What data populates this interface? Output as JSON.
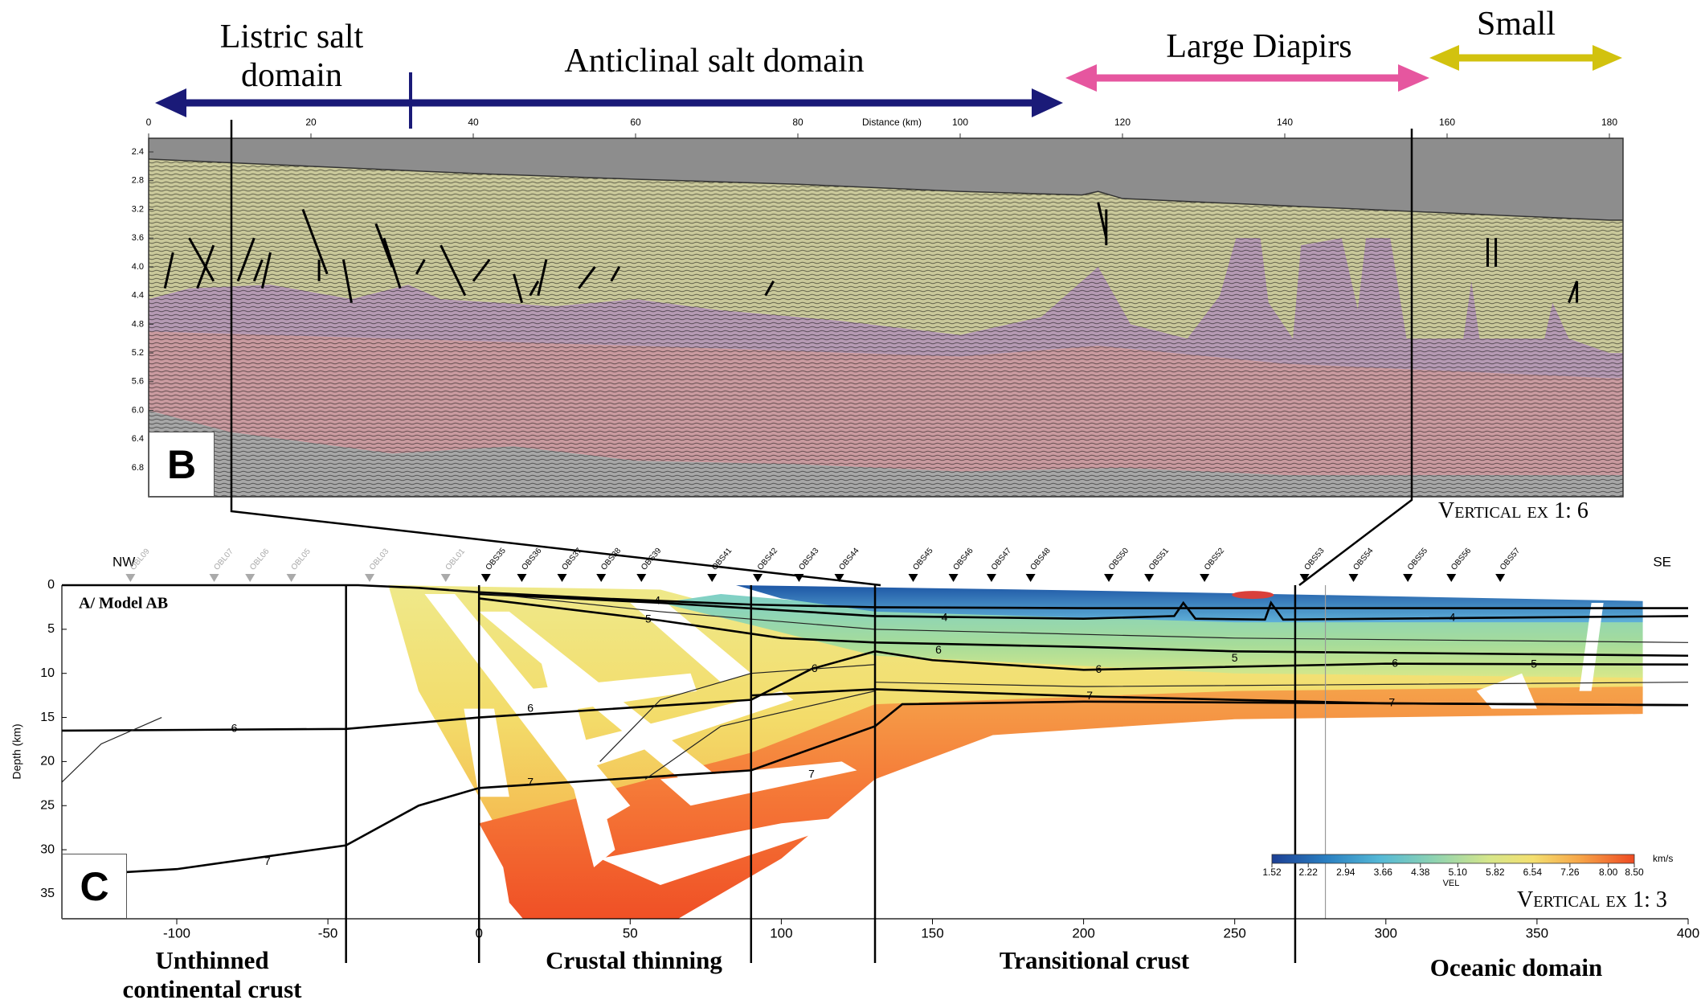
{
  "top_domains": [
    "Listric salt domain",
    "Anticlinal salt domain",
    "Large Diapirs",
    "Small"
  ],
  "panel_b": {
    "label": "B",
    "x_axis_label": "Distance (km)",
    "xticks": [
      0,
      20,
      40,
      60,
      80,
      100,
      120,
      140,
      160,
      180
    ],
    "yticks": [
      2.4,
      2.8,
      3.2,
      3.6,
      {
        "value": 4,
        "label": "4.0"
      },
      4.4,
      4.8,
      5.2,
      5.6,
      {
        "value": 6,
        "label": "6.0"
      },
      6.4,
      6.8
    ],
    "vertical_exaggeration": "Vertical ex 1: 6"
  },
  "panel_c": {
    "label": "C",
    "title": "A/ Model AB",
    "left_direction": "NW",
    "right_direction": "SE",
    "y_axis_label": "Depth (km)",
    "xticks": [
      -100,
      -50,
      0,
      50,
      100,
      150,
      200,
      250,
      300,
      350,
      400
    ],
    "yticks": [
      0,
      5,
      10,
      15,
      20,
      25,
      30,
      35
    ],
    "stations": [
      "OBL09",
      "OBL07",
      "OBL06",
      "OBL05",
      "OBL03",
      "OBL01",
      "OBS35",
      "OBS36",
      "OBS37",
      "OBS38",
      "OBS39",
      "OBS41",
      "OBS42",
      "OBS43",
      "OBS44",
      "OBS45",
      "OBS46",
      "OBS47",
      "OBS48",
      "OBS50",
      "OBS51",
      "OBS52",
      "OBS53",
      "OBS54",
      "OBS55",
      "OBS56",
      "OBS57"
    ],
    "contour_labels": [
      "4",
      "5",
      "6",
      "7",
      "6",
      "7",
      "6",
      "7",
      "4",
      "6",
      "5",
      "6",
      "7",
      "7",
      "6",
      "5",
      "4"
    ],
    "colorbar": {
      "ticks": [
        1.52,
        2.22,
        2.94,
        3.66,
        4.38,
        {
          "value": 5.1,
          "label": "5.10"
        },
        5.82,
        6.54,
        7.26,
        {
          "value": 8,
          "label": "8.00"
        },
        {
          "value": 8.5,
          "label": "8.50"
        }
      ],
      "unit": "km/s",
      "label": "VEL"
    },
    "vertical_exaggeration": "Vertical ex 1: 3"
  },
  "bottom_domains": [
    "Unthinned continental crust",
    "Crustal thinning",
    "Transitional crust",
    "Oceanic domain"
  ]
}
